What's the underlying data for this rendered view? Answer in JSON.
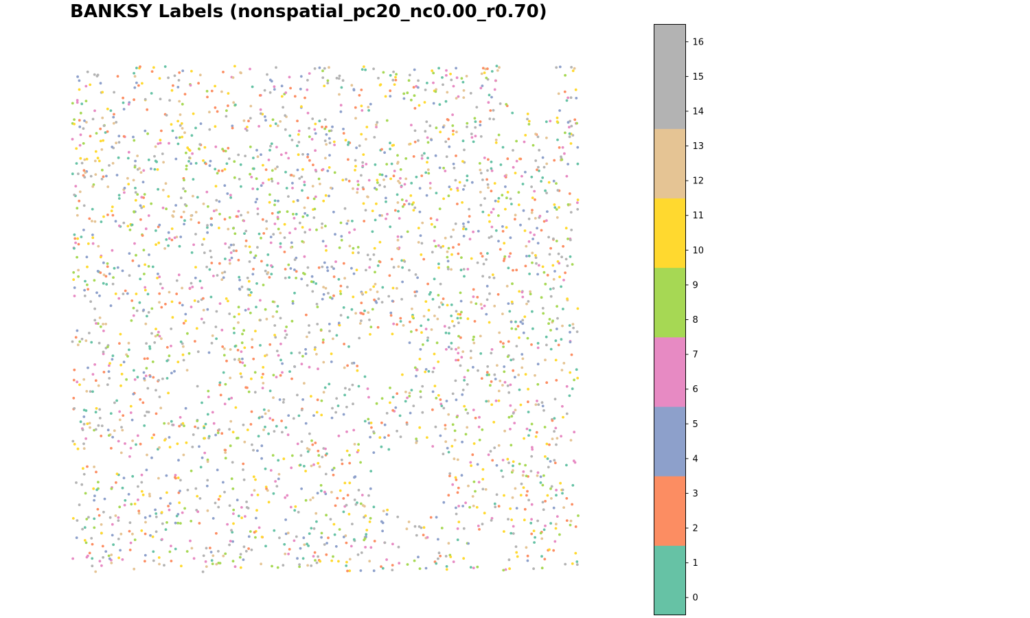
{
  "chart_data": {
    "type": "scatter",
    "title": "BANKSY Labels (nonspatial_pc20_nc0.00_r0.70)",
    "axes_visible": false,
    "n_points": 3000,
    "point_values": "integer cluster labels 0–16",
    "colorbar": {
      "range": [
        -0.5,
        16.5
      ],
      "ticks": [
        0,
        1,
        2,
        3,
        4,
        5,
        6,
        7,
        8,
        9,
        10,
        11,
        12,
        13,
        14,
        15,
        16
      ],
      "tick_labels": [
        "0",
        "1",
        "2",
        "3",
        "4",
        "5",
        "6",
        "7",
        "8",
        "9",
        "10",
        "11",
        "12",
        "13",
        "14",
        "15",
        "16"
      ],
      "bands": [
        {
          "from": -0.5,
          "to": 1.5,
          "color": "#66c2a5"
        },
        {
          "from": 1.5,
          "to": 3.5,
          "color": "#fc8d62"
        },
        {
          "from": 3.5,
          "to": 5.5,
          "color": "#8da0cb"
        },
        {
          "from": 5.5,
          "to": 7.5,
          "color": "#e78ac3"
        },
        {
          "from": 7.5,
          "to": 9.5,
          "color": "#a6d854"
        },
        {
          "from": 9.5,
          "to": 11.5,
          "color": "#ffd92f"
        },
        {
          "from": 11.5,
          "to": 13.5,
          "color": "#e5c494"
        },
        {
          "from": 13.5,
          "to": 16.5,
          "color": "#b3b3b3"
        }
      ]
    }
  }
}
